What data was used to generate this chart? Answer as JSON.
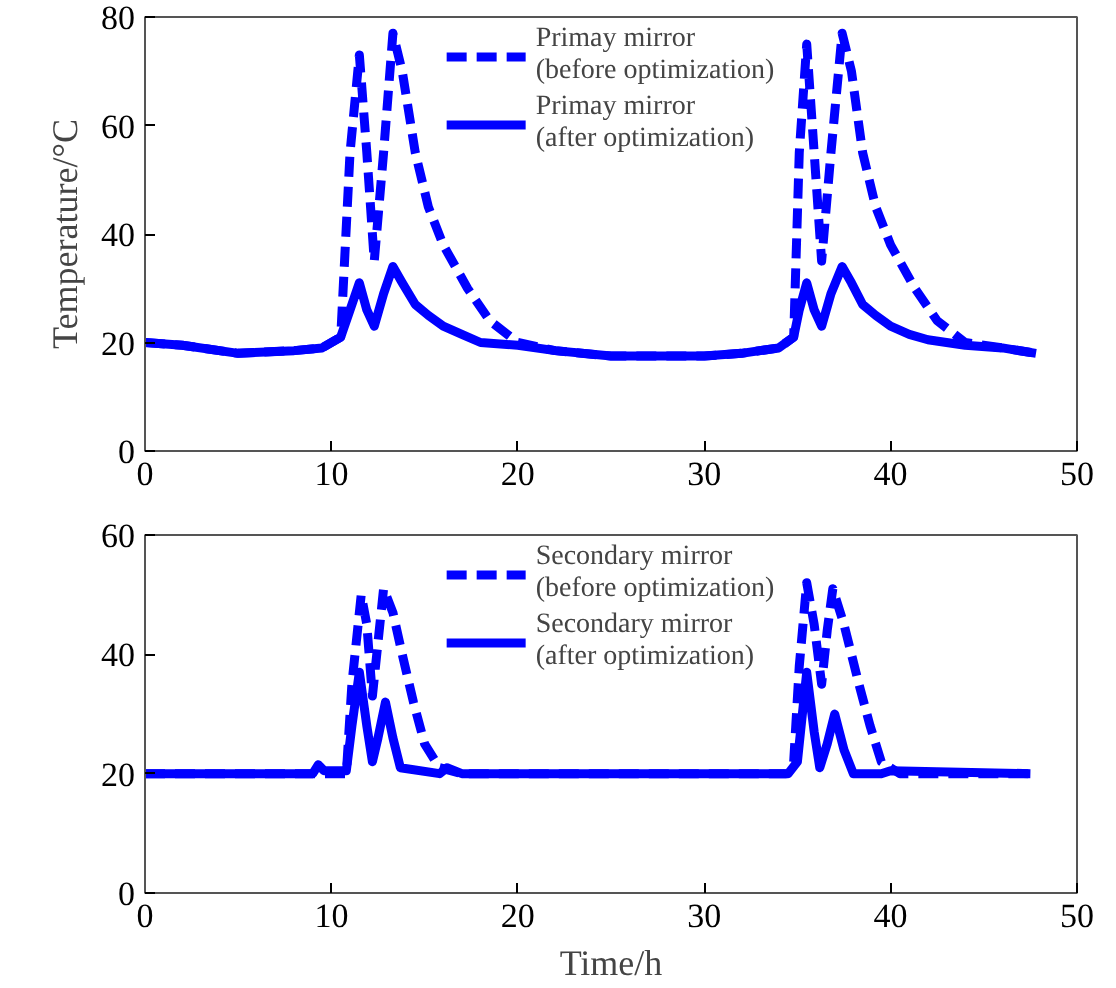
{
  "chart_data": [
    {
      "type": "line",
      "ylabel": "Temperature/°C",
      "xlim": [
        0,
        50
      ],
      "ylim": [
        0,
        80
      ],
      "xticks": [
        0,
        10,
        20,
        30,
        40,
        50
      ],
      "yticks": [
        0,
        20,
        40,
        60,
        80
      ],
      "grid": false,
      "legend": "top",
      "marker": "none",
      "series": [
        {
          "name": "Primay mirror\n(before optimization)",
          "color": "#0000ff",
          "line_style": "dashed",
          "x": [
            0,
            2,
            5,
            8,
            9.5,
            10.5,
            11,
            11.5,
            11.9,
            12.3,
            12.8,
            13.3,
            13.8,
            14.5,
            15.2,
            16,
            17.3,
            18.5,
            20,
            22,
            25,
            27,
            30,
            32,
            34,
            34.8,
            35.1,
            35.5,
            35.9,
            36.3,
            36.8,
            37.4,
            37.9,
            38.5,
            39.2,
            40,
            41.3,
            42.5,
            44,
            46,
            47.8
          ],
          "values": [
            20,
            19.5,
            18,
            18.5,
            19,
            21,
            55,
            73,
            55,
            35,
            55,
            77,
            70,
            55,
            45,
            38,
            30,
            24,
            20,
            18.5,
            17.5,
            17.5,
            17.5,
            18,
            19,
            21,
            55,
            75,
            55,
            35,
            55,
            77,
            70,
            55,
            45,
            38,
            30,
            24,
            20,
            19,
            18
          ]
        },
        {
          "name": "Primay mirror\n(after optimization)",
          "color": "#0000ff",
          "line_style": "solid",
          "x": [
            0,
            2,
            5,
            8,
            9.5,
            10.5,
            11,
            11.5,
            11.9,
            12.3,
            12.8,
            13.3,
            13.8,
            14.5,
            15.2,
            16,
            17,
            18,
            20,
            22,
            25,
            27,
            30,
            32,
            34,
            34.8,
            35.1,
            35.5,
            35.9,
            36.3,
            36.8,
            37.4,
            37.9,
            38.5,
            39.2,
            40,
            41,
            42,
            44,
            46,
            47.8
          ],
          "values": [
            20,
            19.5,
            18,
            18.5,
            19,
            21,
            26,
            31,
            26,
            23,
            29,
            34,
            31,
            27,
            25,
            23,
            21.5,
            20,
            19.5,
            18.5,
            17.5,
            17.5,
            17.5,
            18,
            19,
            21,
            26,
            31,
            26,
            23,
            29,
            34,
            31,
            27,
            25,
            23,
            21.5,
            20.5,
            19.5,
            19,
            18
          ]
        }
      ]
    },
    {
      "type": "line",
      "xlabel": "Time/h",
      "xlim": [
        0,
        50
      ],
      "ylim": [
        0,
        60
      ],
      "xticks": [
        0,
        10,
        20,
        30,
        40,
        50
      ],
      "yticks": [
        0,
        20,
        40,
        60
      ],
      "grid": false,
      "legend": "top",
      "marker": "none",
      "series": [
        {
          "name": "Secondary mirror\n(before optimization)",
          "color": "#0000ff",
          "line_style": "dashed",
          "x": [
            0,
            5,
            10.8,
            11.1,
            11.6,
            11.9,
            12.2,
            12.5,
            12.8,
            13.3,
            13.8,
            14.4,
            15,
            15.8,
            17,
            25,
            34.4,
            34.8,
            35.1,
            35.5,
            35.9,
            36.3,
            36.6,
            36.9,
            37.5,
            38.3,
            38.9,
            39.5,
            40.5,
            47.5
          ],
          "values": [
            20,
            20,
            20,
            35,
            50,
            45,
            33,
            42,
            51,
            47,
            40,
            32,
            25,
            21,
            20,
            20,
            20,
            22,
            38,
            52,
            45,
            35,
            44,
            51,
            45,
            35,
            28,
            22,
            20,
            20
          ]
        },
        {
          "name": "Secondary mirror\n(after optimization)",
          "color": "#0000ff",
          "line_style": "solid",
          "x": [
            0,
            5,
            9,
            9.3,
            9.6,
            10.8,
            11.1,
            11.5,
            11.9,
            12.2,
            12.5,
            12.9,
            13.3,
            13.7,
            15.8,
            16.2,
            17,
            25,
            34.5,
            35,
            35.5,
            35.9,
            36.2,
            36.6,
            37,
            37.5,
            38,
            39.5,
            40,
            47.5
          ],
          "values": [
            20,
            20,
            20,
            21.5,
            20.5,
            20.5,
            28,
            37,
            28,
            22,
            26,
            32,
            26,
            21,
            20,
            21,
            20,
            20,
            20,
            22,
            37,
            27,
            21,
            25,
            30,
            24,
            20,
            20,
            20.5,
            20
          ]
        }
      ]
    }
  ]
}
